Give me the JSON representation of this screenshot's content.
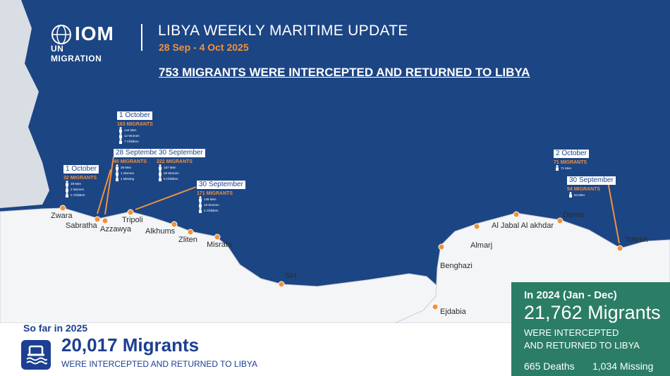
{
  "header": {
    "logo_name": "IOM",
    "logo_sub": "UN MIGRATION",
    "title": "LIBYA WEEKLY MARITIME UPDATE",
    "dates": "28 Sep - 4 Oct 2025",
    "headline": "753 MIGRANTS WERE INTERCEPTED AND RETURNED TO LIBYA"
  },
  "colors": {
    "sea": "#1c4584",
    "accent": "#f2913d",
    "panel_green": "#2b7d66",
    "text_blue": "#1c3f91"
  },
  "incidents": [
    {
      "date": "1 October",
      "migrants": "163 MIGRANTS",
      "men": "144 Men",
      "women": "12 Women",
      "children": "7 Children"
    },
    {
      "date": "28 September",
      "migrants": "40 MIGRANTS",
      "men": "39 Men",
      "women": "1 Women",
      "missing": "1 Missing"
    },
    {
      "date": "30 September",
      "migrants": "222 MIGRANTS",
      "men": "187 Men",
      "women": "26 Women",
      "children": "9 Children"
    },
    {
      "date": "1 October",
      "migrants": "32 MIGRANTS",
      "men": "28 Men",
      "women": "2 Women",
      "children": "2 Children"
    },
    {
      "date": "30 September",
      "migrants": "171 MIGRANTS",
      "men": "149 Men",
      "women": "18 Women",
      "children": "4 Children"
    },
    {
      "date": "2 October",
      "migrants": "71 MIGRANTS",
      "men": "71 Men"
    },
    {
      "date": "30 September",
      "migrants": "54 MIGRANTS",
      "men": "54 Men"
    }
  ],
  "cities": [
    "Zwara",
    "Sabratha",
    "Azzawya",
    "Tripoli",
    "Alkhums",
    "Zliten",
    "Misrata",
    "Sirt",
    "Benghazi",
    "Ejdabia",
    "Almarj",
    "Al Jabal Al akhdar",
    "Derna",
    "Tobruk"
  ],
  "so_far": {
    "label": "So far in 2025",
    "count": "20,017 Migrants",
    "text": "WERE INTERCEPTED AND RETURNED TO LIBYA",
    "icon": "boat-icon"
  },
  "year2024": {
    "label": "In 2024 (Jan - Dec)",
    "count": "21,762 Migrants",
    "text1": "WERE INTERCEPTED",
    "text2": "AND RETURNED TO LIBYA",
    "deaths": "665 Deaths",
    "missing": "1,034 Missing"
  }
}
